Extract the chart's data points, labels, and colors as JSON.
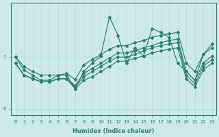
{
  "xlabel": "Humidex (Indice chaleur)",
  "x": [
    0,
    1,
    2,
    3,
    4,
    5,
    6,
    7,
    8,
    9,
    10,
    11,
    12,
    13,
    14,
    15,
    16,
    17,
    18,
    19,
    20,
    21,
    22,
    23
  ],
  "lines": [
    [
      7.0,
      6.82,
      6.72,
      6.65,
      6.65,
      6.65,
      6.68,
      6.56,
      6.85,
      6.95,
      7.05,
      7.15,
      7.22,
      7.22,
      7.28,
      7.32,
      7.38,
      7.42,
      7.45,
      7.48,
      6.88,
      6.72,
      7.05,
      7.18
    ],
    [
      6.88,
      6.65,
      6.58,
      6.52,
      6.52,
      6.58,
      6.58,
      6.38,
      6.55,
      6.62,
      6.72,
      6.82,
      6.92,
      6.92,
      6.98,
      7.02,
      7.08,
      7.12,
      7.15,
      7.18,
      6.58,
      6.42,
      6.75,
      6.88
    ],
    [
      6.88,
      6.65,
      6.58,
      6.52,
      6.52,
      6.58,
      6.58,
      6.45,
      6.68,
      6.78,
      6.88,
      6.98,
      7.08,
      7.08,
      7.12,
      7.18,
      7.22,
      7.28,
      7.32,
      7.35,
      6.72,
      6.55,
      6.88,
      7.02
    ],
    [
      6.88,
      6.65,
      6.58,
      6.52,
      6.52,
      6.58,
      6.58,
      6.42,
      6.62,
      6.72,
      6.82,
      6.92,
      7.0,
      7.0,
      7.05,
      7.12,
      7.18,
      7.22,
      7.25,
      7.28,
      6.65,
      6.48,
      6.82,
      6.95
    ],
    [
      7.0,
      6.75,
      6.65,
      6.55,
      6.55,
      6.65,
      6.65,
      6.38,
      6.72,
      6.88,
      7.02,
      7.78,
      7.42,
      6.88,
      7.18,
      7.02,
      7.55,
      7.48,
      7.38,
      6.88,
      6.72,
      6.55,
      7.05,
      7.25
    ]
  ],
  "line_color": "#2e7d6e",
  "bg_color": "#cdeae8",
  "grid_color": "#b2d8d5",
  "ylim": [
    5.88,
    8.05
  ],
  "yticks": [
    6,
    7
  ],
  "text_color": "#2e7d6e",
  "marker": "D",
  "markersize": 2.0,
  "linewidth": 0.85
}
